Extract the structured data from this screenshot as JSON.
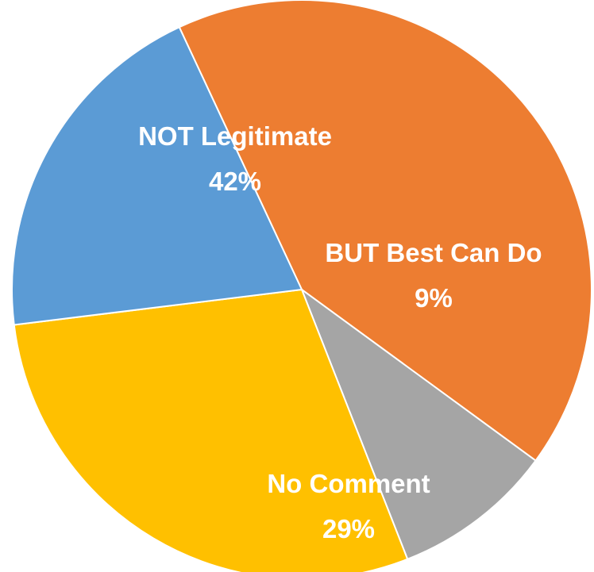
{
  "chart_data": {
    "type": "pie",
    "slices": [
      {
        "label": "NOT Legitimate",
        "value": 42,
        "value_label": "42%",
        "color": "#ED7D31"
      },
      {
        "label": "BUT Best Can Do",
        "value": 9,
        "value_label": "9%",
        "color": "#A5A5A5"
      },
      {
        "label": "No Comment",
        "value": 29,
        "value_label": "29%",
        "color": "#FFC000"
      },
      {
        "label": "",
        "value": 20,
        "value_label": "",
        "color": "#5B9BD5"
      }
    ]
  }
}
